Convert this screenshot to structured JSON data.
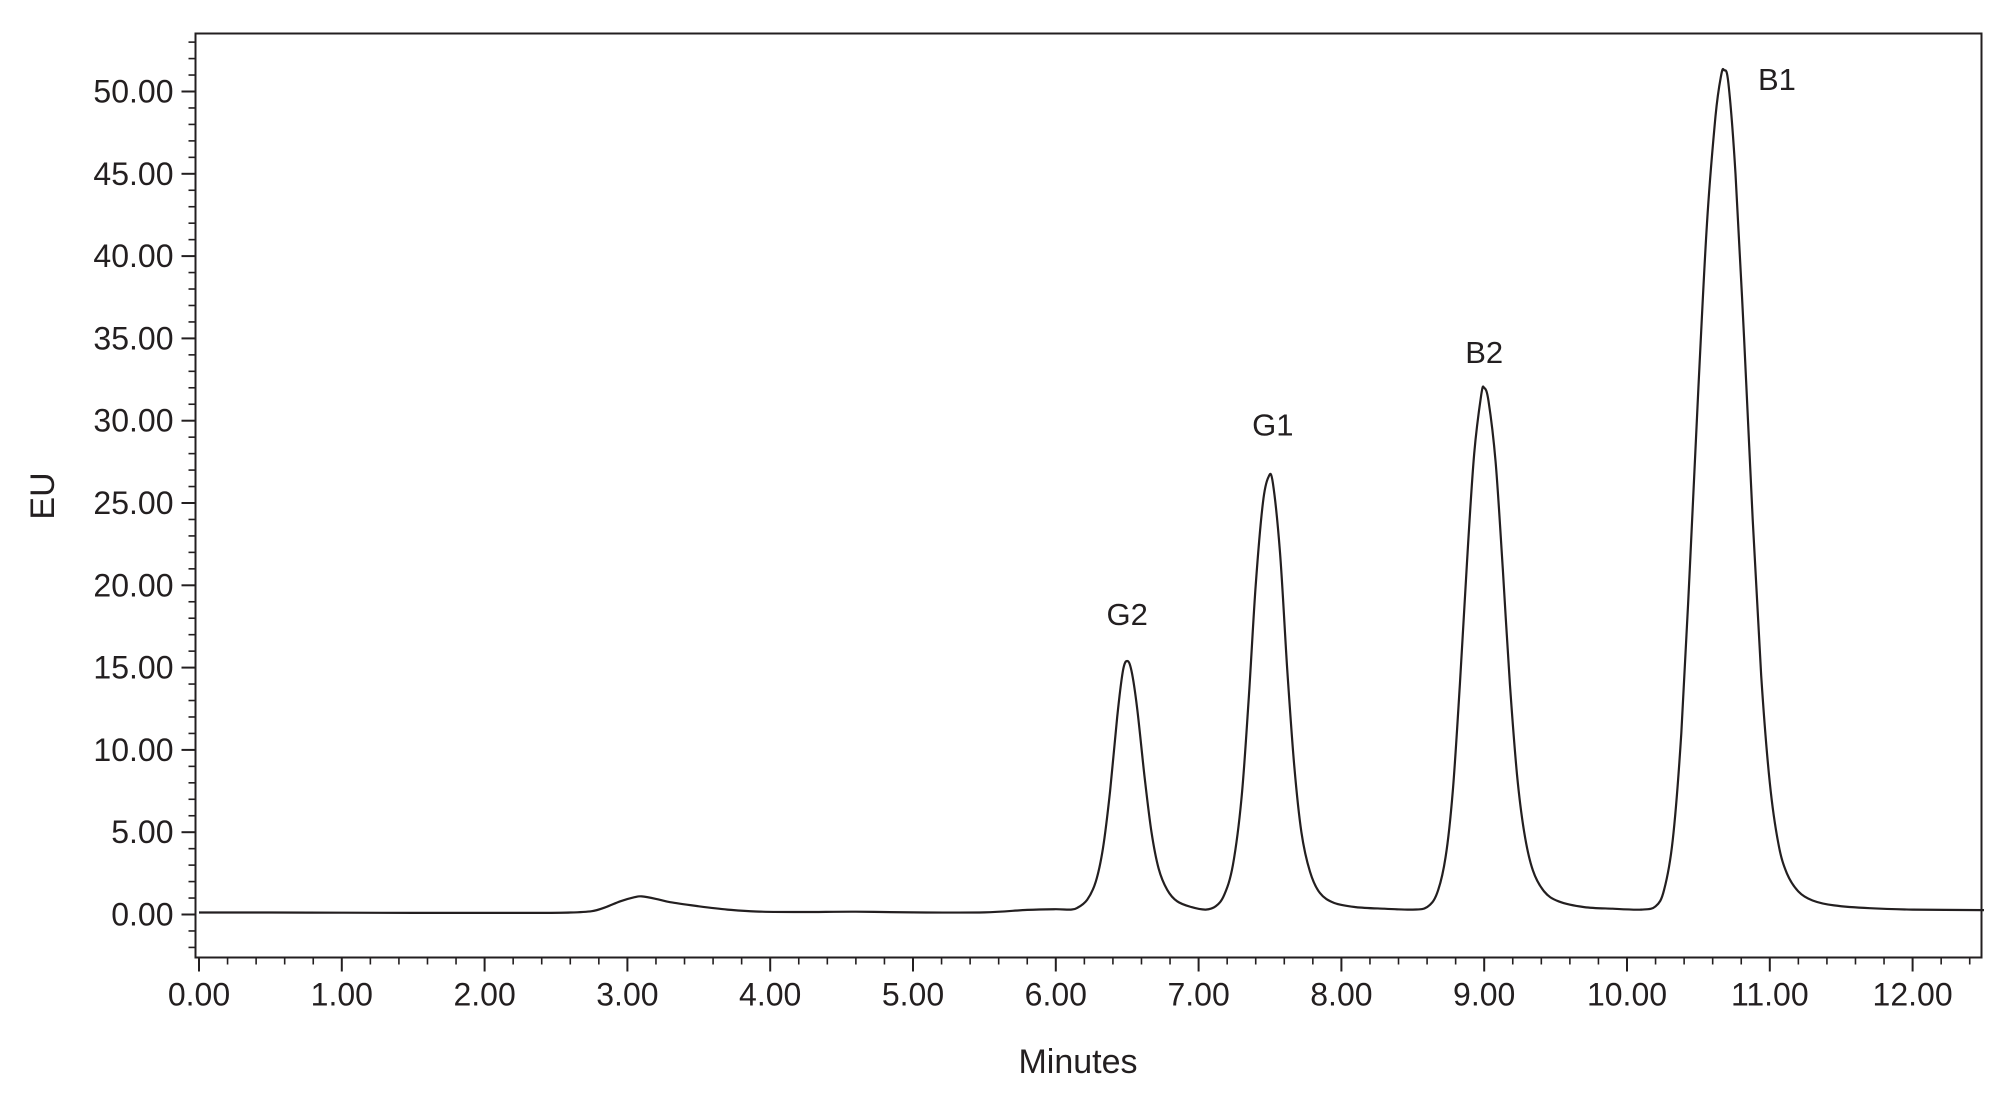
{
  "chart_data": {
    "type": "line",
    "title": "",
    "xlabel": "Minutes",
    "ylabel": "EU",
    "xlim": [
      0,
      12.5
    ],
    "ylim": [
      -2.8,
      53.5
    ],
    "x_ticks": [
      "0.00",
      "1.00",
      "2.00",
      "3.00",
      "4.00",
      "5.00",
      "6.00",
      "7.00",
      "8.00",
      "9.00",
      "10.00",
      "11.00",
      "12.00"
    ],
    "y_ticks": [
      "0.00",
      "5.00",
      "10.00",
      "15.00",
      "20.00",
      "25.00",
      "30.00",
      "35.00",
      "40.00",
      "45.00",
      "50.00"
    ],
    "grid": false,
    "legend": "none",
    "line_color": "#231f20",
    "series": [
      {
        "points": [
          [
            0.0,
            0.12
          ],
          [
            0.5,
            0.12
          ],
          [
            1.0,
            0.11
          ],
          [
            1.5,
            0.1
          ],
          [
            2.0,
            0.1
          ],
          [
            2.4,
            0.1
          ],
          [
            2.6,
            0.12
          ],
          [
            2.75,
            0.2
          ],
          [
            2.85,
            0.45
          ],
          [
            2.95,
            0.8
          ],
          [
            3.05,
            1.05
          ],
          [
            3.1,
            1.1
          ],
          [
            3.2,
            0.95
          ],
          [
            3.3,
            0.75
          ],
          [
            3.5,
            0.5
          ],
          [
            3.7,
            0.3
          ],
          [
            3.9,
            0.18
          ],
          [
            4.2,
            0.15
          ],
          [
            4.6,
            0.17
          ],
          [
            5.0,
            0.13
          ],
          [
            5.5,
            0.13
          ],
          [
            5.8,
            0.28
          ],
          [
            6.0,
            0.32
          ],
          [
            6.1,
            0.3
          ],
          [
            6.15,
            0.4
          ],
          [
            6.22,
            0.9
          ],
          [
            6.28,
            2.0
          ],
          [
            6.33,
            4.0
          ],
          [
            6.38,
            7.5
          ],
          [
            6.43,
            12.0
          ],
          [
            6.47,
            14.8
          ],
          [
            6.5,
            15.4
          ],
          [
            6.53,
            14.8
          ],
          [
            6.57,
            12.5
          ],
          [
            6.62,
            8.5
          ],
          [
            6.67,
            5.0
          ],
          [
            6.72,
            2.8
          ],
          [
            6.78,
            1.5
          ],
          [
            6.85,
            0.8
          ],
          [
            6.95,
            0.45
          ],
          [
            7.05,
            0.3
          ],
          [
            7.12,
            0.5
          ],
          [
            7.18,
            1.2
          ],
          [
            7.24,
            3.0
          ],
          [
            7.3,
            7.0
          ],
          [
            7.35,
            13.0
          ],
          [
            7.4,
            20.0
          ],
          [
            7.45,
            25.0
          ],
          [
            7.49,
            26.6
          ],
          [
            7.52,
            26.2
          ],
          [
            7.57,
            22.0
          ],
          [
            7.62,
            15.0
          ],
          [
            7.67,
            9.0
          ],
          [
            7.72,
            5.0
          ],
          [
            7.78,
            2.6
          ],
          [
            7.85,
            1.3
          ],
          [
            7.95,
            0.7
          ],
          [
            8.1,
            0.45
          ],
          [
            8.3,
            0.35
          ],
          [
            8.5,
            0.3
          ],
          [
            8.6,
            0.45
          ],
          [
            8.67,
            1.3
          ],
          [
            8.73,
            3.5
          ],
          [
            8.78,
            7.5
          ],
          [
            8.83,
            14.0
          ],
          [
            8.88,
            21.5
          ],
          [
            8.93,
            28.0
          ],
          [
            8.98,
            31.6
          ],
          [
            9.0,
            32.0
          ],
          [
            9.03,
            31.2
          ],
          [
            9.08,
            27.5
          ],
          [
            9.13,
            21.0
          ],
          [
            9.18,
            14.0
          ],
          [
            9.23,
            8.5
          ],
          [
            9.28,
            5.0
          ],
          [
            9.34,
            2.7
          ],
          [
            9.42,
            1.4
          ],
          [
            9.52,
            0.8
          ],
          [
            9.7,
            0.45
          ],
          [
            9.9,
            0.35
          ],
          [
            10.1,
            0.3
          ],
          [
            10.2,
            0.5
          ],
          [
            10.26,
            1.5
          ],
          [
            10.32,
            4.5
          ],
          [
            10.38,
            11.0
          ],
          [
            10.44,
            21.0
          ],
          [
            10.5,
            32.0
          ],
          [
            10.56,
            42.0
          ],
          [
            10.62,
            48.5
          ],
          [
            10.66,
            51.0
          ],
          [
            10.68,
            51.3
          ],
          [
            10.71,
            50.5
          ],
          [
            10.76,
            45.0
          ],
          [
            10.82,
            35.0
          ],
          [
            10.88,
            24.0
          ],
          [
            10.94,
            14.5
          ],
          [
            11.0,
            8.0
          ],
          [
            11.06,
            4.3
          ],
          [
            11.12,
            2.5
          ],
          [
            11.2,
            1.4
          ],
          [
            11.3,
            0.85
          ],
          [
            11.45,
            0.55
          ],
          [
            11.7,
            0.38
          ],
          [
            12.0,
            0.3
          ],
          [
            12.5,
            0.27
          ]
        ]
      }
    ],
    "annotations": [
      {
        "text": "G2",
        "x": 6.5,
        "y": 17.6
      },
      {
        "text": "G1",
        "x": 7.52,
        "y": 29.1
      },
      {
        "text": "B2",
        "x": 9.0,
        "y": 33.5
      },
      {
        "text": "B1",
        "x": 11.05,
        "y": 50.1
      }
    ]
  }
}
